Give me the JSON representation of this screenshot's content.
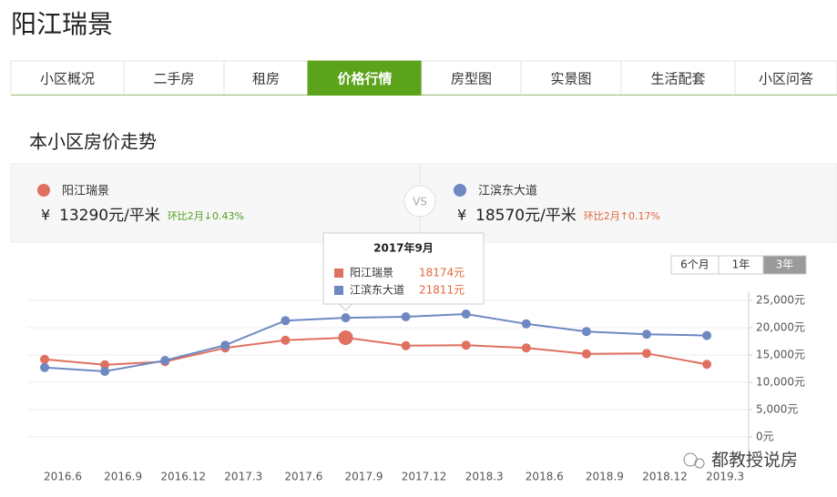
{
  "header": {
    "title": "阳江瑞景"
  },
  "tabs": [
    "小区概况",
    "二手房",
    "租房",
    "价格行情",
    "房型图",
    "实景图",
    "生活配套",
    "小区问答"
  ],
  "active_tab": 3,
  "section_title": "本小区房价走势",
  "compare": [
    {
      "currency": "¥",
      "price": "13290元/平米",
      "change": "环比2月↓0.43%",
      "change_color": "#4f9e1f"
    },
    {
      "currency": "¥",
      "price": "18570元/平米",
      "change": "环比2月↑0.17%",
      "change_color": "#e0683a"
    }
  ],
  "vs": "VS",
  "range_buttons": [
    "6个月",
    "1年",
    "3年"
  ],
  "active_range": 2,
  "tooltip": {
    "title": "2017年9月",
    "values": [
      "18174元",
      "21811元"
    ],
    "index": 5
  },
  "watermark": "都教授说房",
  "chart_data": {
    "type": "line",
    "categories": [
      "2016.6",
      "2016.9",
      "2016.12",
      "2017.3",
      "2017.6",
      "2017.9",
      "2017.12",
      "2018.3",
      "2018.6",
      "2018.9",
      "2018.12",
      "2019.3"
    ],
    "series": [
      {
        "name": "阳江瑞景",
        "color": "#e0705f",
        "values": [
          14200,
          13200,
          13800,
          16300,
          17700,
          18174,
          16700,
          16800,
          16300,
          15200,
          15300,
          13290
        ]
      },
      {
        "name": "江滨东大道",
        "color": "#6e88c2",
        "values": [
          12700,
          12000,
          14000,
          16800,
          21300,
          21811,
          22000,
          22500,
          20700,
          19300,
          18800,
          18570
        ]
      }
    ],
    "ylim": [
      0,
      25000
    ],
    "yticks": [
      {
        "value": 0,
        "label": "0元"
      },
      {
        "value": 5000,
        "label": "5,000元"
      },
      {
        "value": 10000,
        "label": "10,000元"
      },
      {
        "value": 15000,
        "label": "15,000元"
      },
      {
        "value": 20000,
        "label": "20,000元"
      },
      {
        "value": 25000,
        "label": "25,000元"
      }
    ],
    "grid": true
  }
}
